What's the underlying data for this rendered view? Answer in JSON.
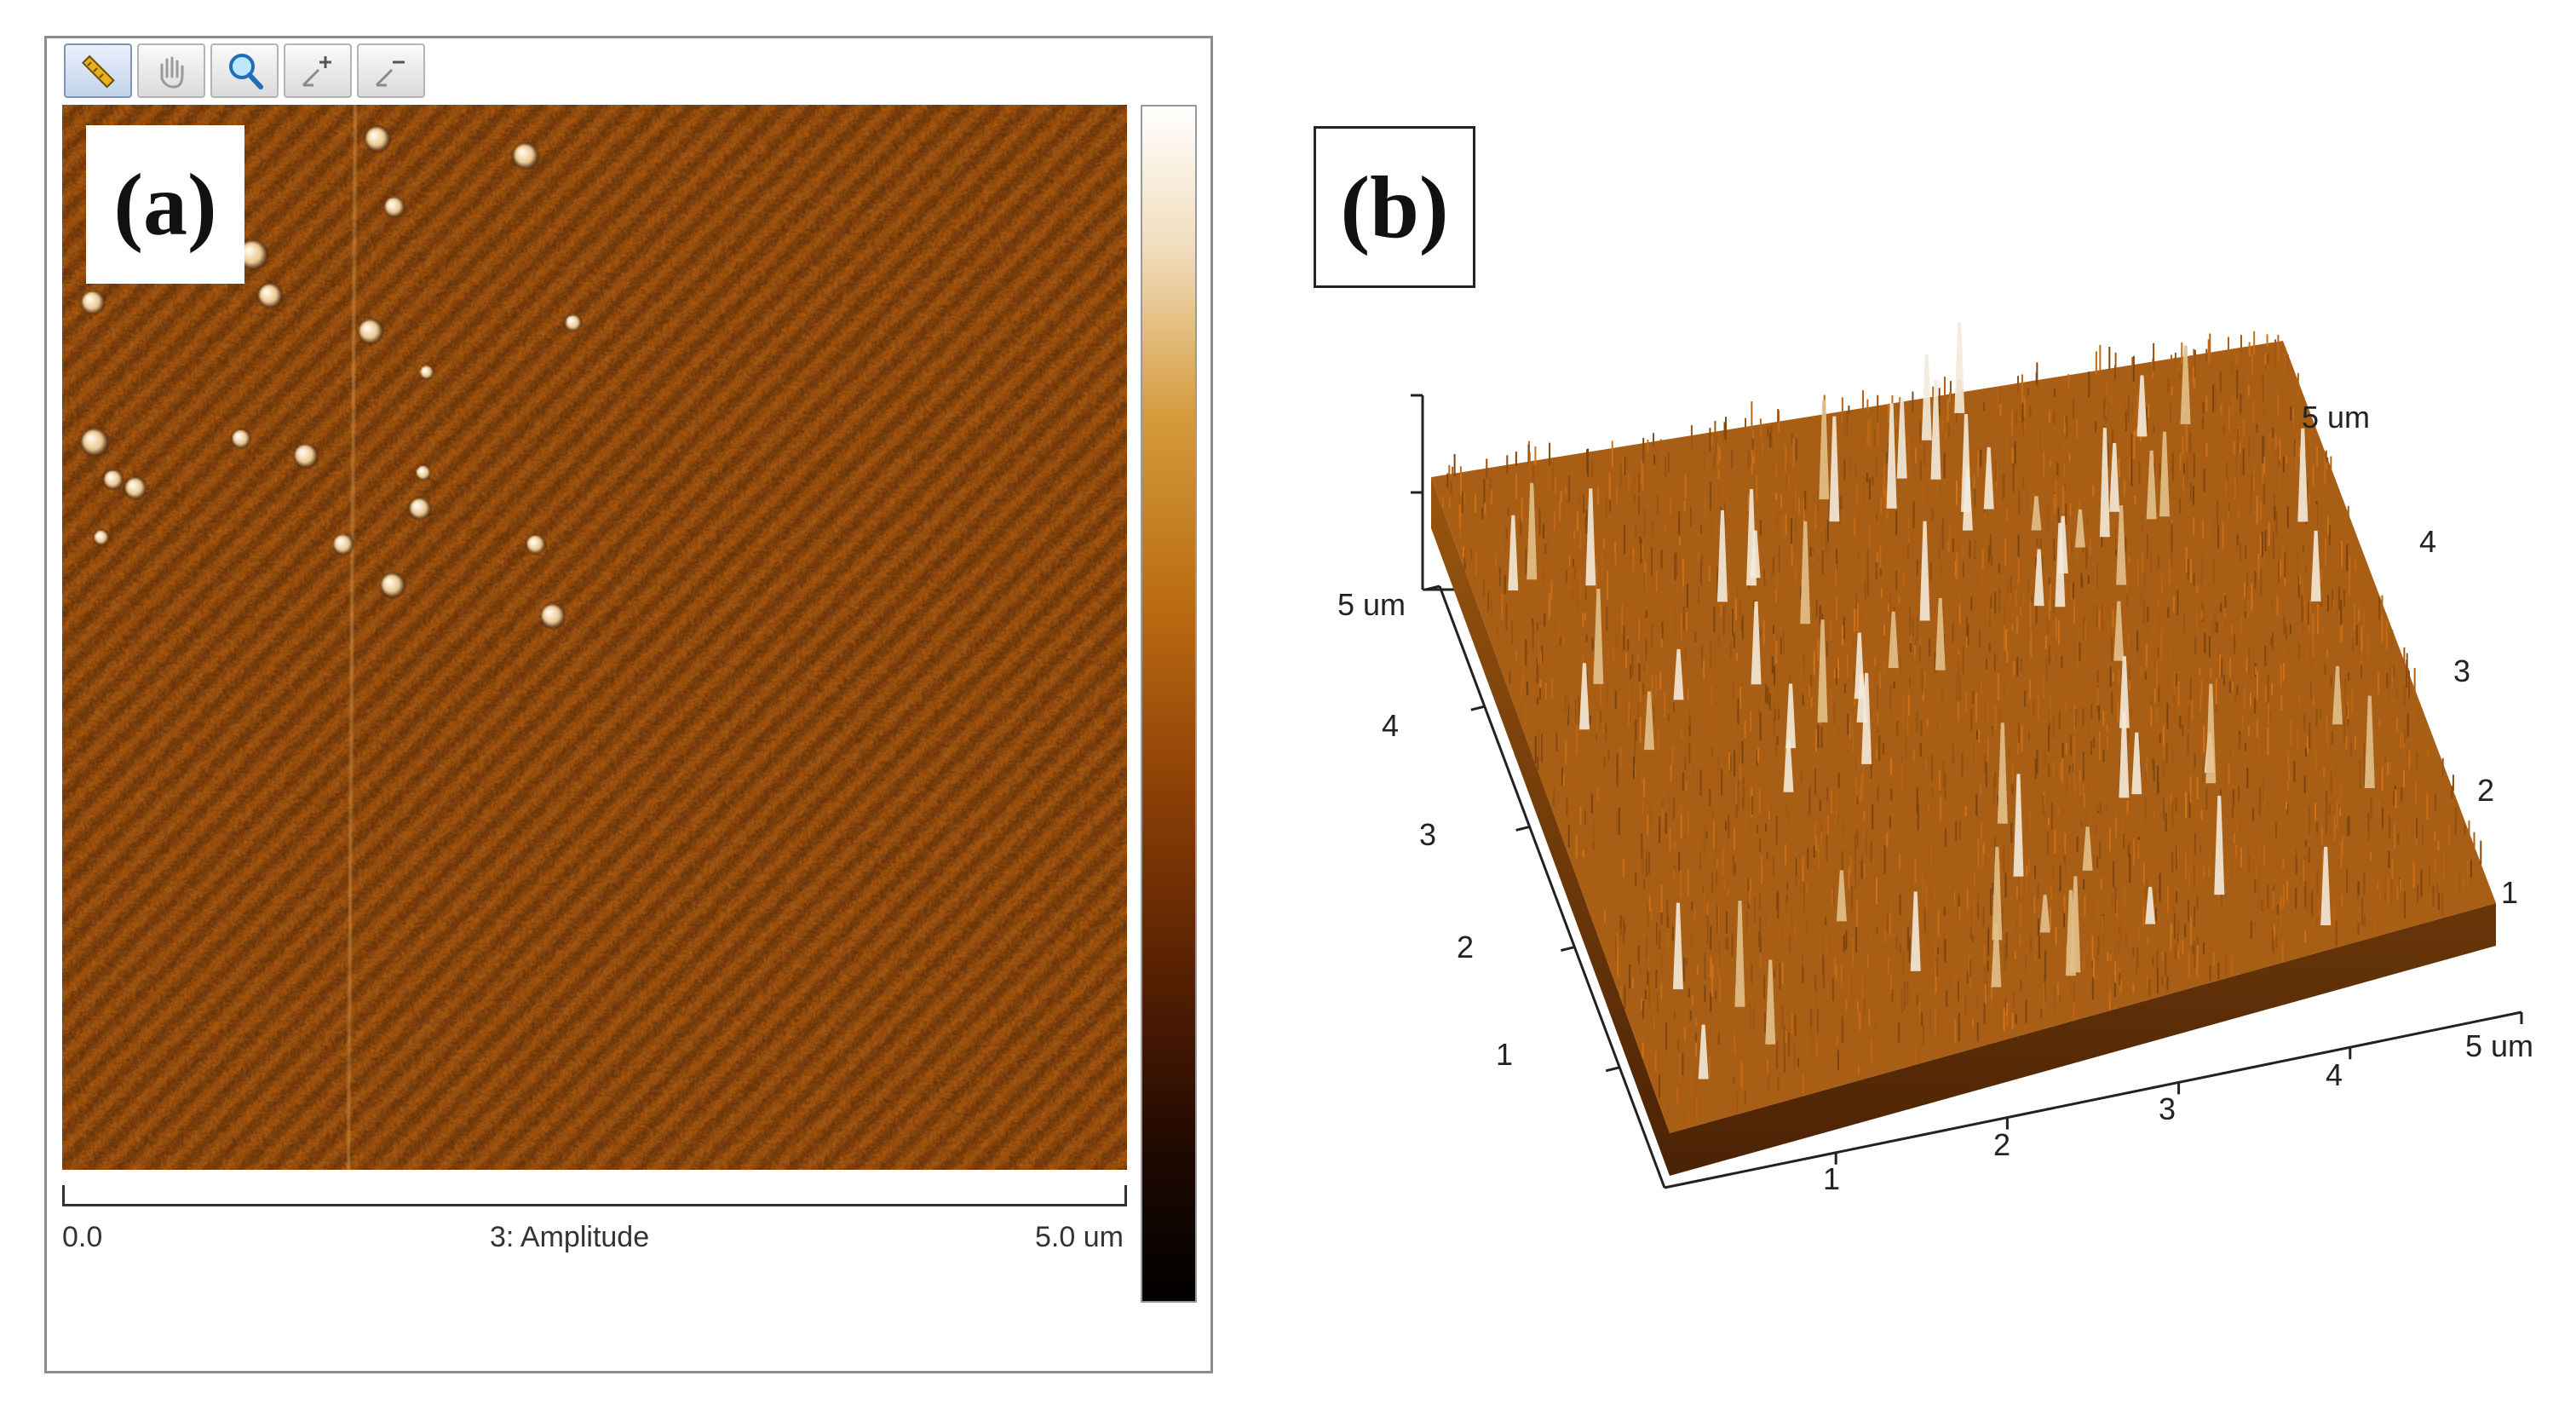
{
  "panel_a": {
    "label": "(a)",
    "toolbar": [
      {
        "name": "ruler-icon",
        "active": true
      },
      {
        "name": "hand-pan-icon",
        "active": false
      },
      {
        "name": "magnifier-icon",
        "active": false
      },
      {
        "name": "zoom-in-icon",
        "active": false
      },
      {
        "name": "zoom-out-icon",
        "active": false
      }
    ],
    "scale": {
      "start": "0.0",
      "channel": "3: Amplitude",
      "end": "5.0 um"
    },
    "colors": {
      "surface_base": "#a55a10",
      "colorbar": [
        "#ffffff",
        "#d49a3c",
        "#8a3e06",
        "#000000"
      ]
    }
  },
  "panel_b": {
    "label": "(b)",
    "x_ticks": [
      "1",
      "2",
      "3",
      "4",
      "5 um"
    ],
    "y_ticks": [
      "1",
      "2",
      "3",
      "4",
      "5 um"
    ],
    "back_ticks": [
      "1",
      "2",
      "3",
      "4",
      "5 um"
    ]
  }
}
